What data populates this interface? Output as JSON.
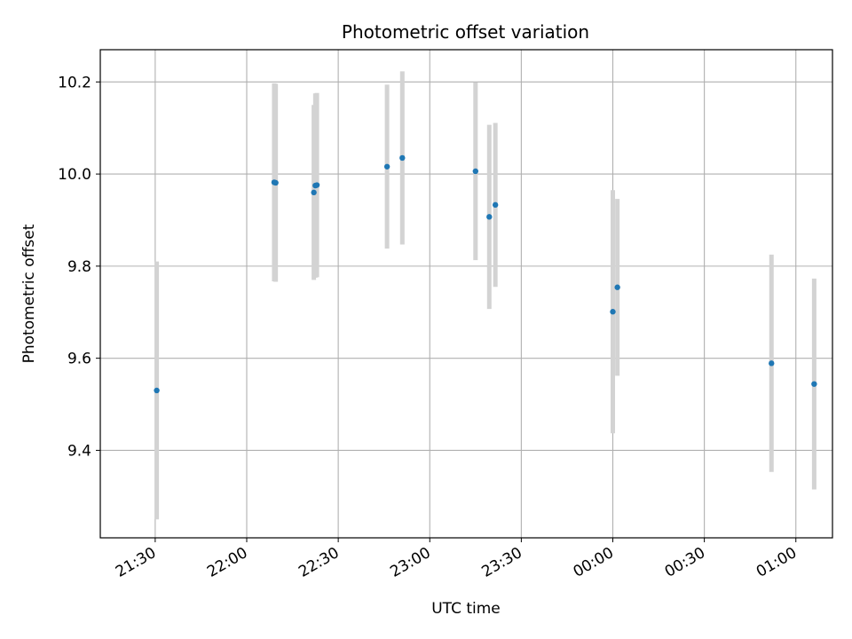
{
  "chart_data": {
    "type": "scatter",
    "title": "Photometric offset variation",
    "xlabel": "UTC time",
    "ylabel": "Photometric offset",
    "grid": true,
    "x_axis_kind": "time",
    "xlim": [
      "21:12",
      "01:12"
    ],
    "ylim": [
      9.21,
      10.27
    ],
    "x_ticks": [
      "21:30",
      "22:00",
      "22:30",
      "23:00",
      "23:30",
      "00:00",
      "00:30",
      "01:00"
    ],
    "y_ticks": [
      9.4,
      9.6,
      9.8,
      10.0,
      10.2
    ],
    "y_tick_labels": [
      "9.4",
      "9.6",
      "9.8",
      "10.0",
      "10.2"
    ],
    "point_color": "#1f77b4",
    "errorbar_color": "#d3d3d3",
    "series": [
      {
        "points": [
          {
            "x": "21:30:30",
            "y": 9.53,
            "yerr": 0.28
          },
          {
            "x": "22:09:00",
            "y": 9.982,
            "yerr": 0.215
          },
          {
            "x": "22:09:30",
            "y": 9.981,
            "yerr": 0.215
          },
          {
            "x": "22:22:00",
            "y": 9.96,
            "yerr": 0.19
          },
          {
            "x": "22:22:30",
            "y": 9.975,
            "yerr": 0.2
          },
          {
            "x": "22:23:00",
            "y": 9.976,
            "yerr": 0.2
          },
          {
            "x": "22:46:00",
            "y": 10.016,
            "yerr": 0.178
          },
          {
            "x": "22:51:00",
            "y": 10.035,
            "yerr": 0.188
          },
          {
            "x": "23:15:00",
            "y": 10.006,
            "yerr": 0.193
          },
          {
            "x": "23:19:30",
            "y": 9.907,
            "yerr": 0.2
          },
          {
            "x": "23:21:30",
            "y": 9.933,
            "yerr": 0.178
          },
          {
            "x": "00:00:00",
            "y": 9.701,
            "yerr": 0.264
          },
          {
            "x": "00:01:30",
            "y": 9.754,
            "yerr": 0.192
          },
          {
            "x": "00:52:00",
            "y": 9.589,
            "yerr": 0.236
          },
          {
            "x": "01:06:00",
            "y": 9.544,
            "yerr": 0.229
          }
        ]
      }
    ]
  }
}
